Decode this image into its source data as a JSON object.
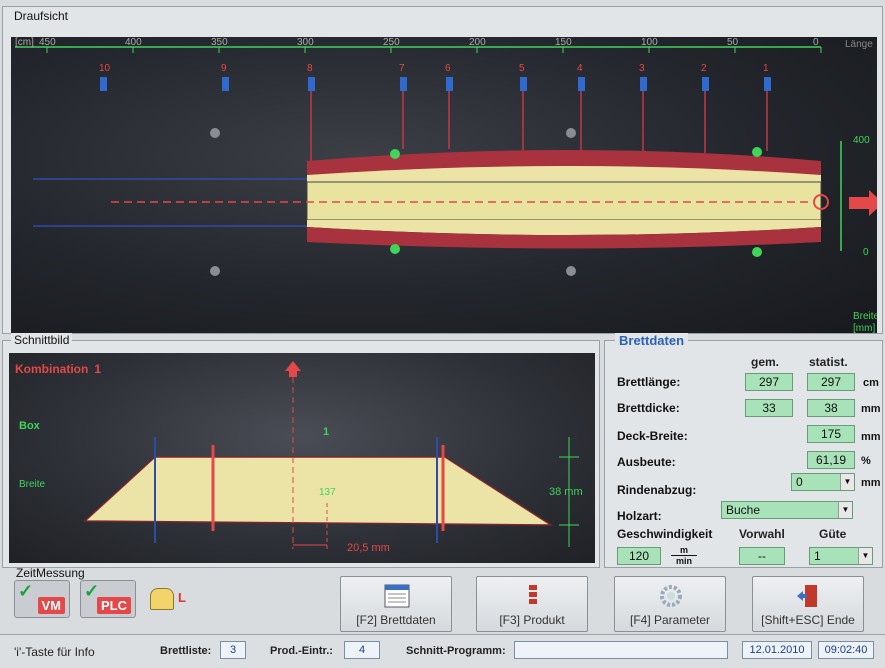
{
  "top_view": {
    "title": "Draufsicht",
    "ruler_unit": "[cm]",
    "ruler_ticks": [
      "450",
      "400",
      "350",
      "300",
      "250",
      "200",
      "150",
      "100",
      "50",
      "0"
    ],
    "ruler_right_label": "Länge",
    "sensor_labels": [
      "10",
      "9",
      "8",
      "7",
      "6",
      "5",
      "4",
      "3",
      "2",
      "1"
    ],
    "width_ticks": [
      "400",
      "0"
    ],
    "width_axis_label_1": "Breite",
    "width_axis_label_2": "[mm]"
  },
  "cut_view": {
    "title": "Schnittbild",
    "combination_label": "Kombination",
    "combination_value": "1",
    "box_label": "Box",
    "box_value": "1",
    "breite_label": "Breite",
    "breite_value": "137",
    "height_value": "38 mm",
    "offset_value": "20,5 mm"
  },
  "brettdaten": {
    "title": "Brettdaten",
    "col_gem": "gem.",
    "col_statist": "statist.",
    "brettlaenge_label": "Brettlänge:",
    "brettlaenge_gem": "297",
    "brettlaenge_statist": "297",
    "brettlaenge_unit": "cm",
    "brettdicke_label": "Brettdicke:",
    "brettdicke_gem": "33",
    "brettdicke_statist": "38",
    "brettdicke_unit": "mm",
    "deckbreite_label": "Deck-Breite:",
    "deckbreite_statist": "175",
    "deckbreite_unit": "mm",
    "ausbeute_label": "Ausbeute:",
    "ausbeute_statist": "61,19",
    "ausbeute_unit": "%",
    "rindenabzug_label": "Rindenabzug:",
    "rindenabzug_value": "0",
    "rindenabzug_unit": "mm",
    "holzart_label": "Holzart:",
    "holzart_value": "Buche",
    "geschwindigkeit_label": "Geschwindigkeit",
    "geschwindigkeit_value": "120",
    "geschwindigkeit_unit_top": "m",
    "geschwindigkeit_unit_bottom": "min",
    "vorwahl_label": "Vorwahl",
    "vorwahl_value": "--",
    "guete_label": "Güte",
    "guete_value": "1"
  },
  "toolbar": {
    "zeitmessung_label": "ZeitMessung",
    "vm_label": "VM",
    "plc_label": "PLC",
    "alarm_letter": "L",
    "f2_label": "[F2] Brettdaten",
    "f3_label": "[F3] Produkt",
    "f4_label": "[F4] Parameter",
    "end_label": "[Shift+ESC] Ende"
  },
  "status": {
    "info": "'i'-Taste für Info",
    "brettliste_label": "Brettliste:",
    "brettliste_value": "3",
    "prod_label": "Prod.-Eintr.:",
    "prod_value": "4",
    "programm_label": "Schnitt-Programm:",
    "programm_value": "",
    "date": "12.01.2010",
    "time": "09:02:40"
  },
  "colors": {
    "wood": "#ece3a6",
    "bark": "#a8323e",
    "accent_green": "#3fd45a",
    "accent_red": "#e44848",
    "value_bg": "#a8e2b8",
    "header_blue": "#2a62b5"
  }
}
